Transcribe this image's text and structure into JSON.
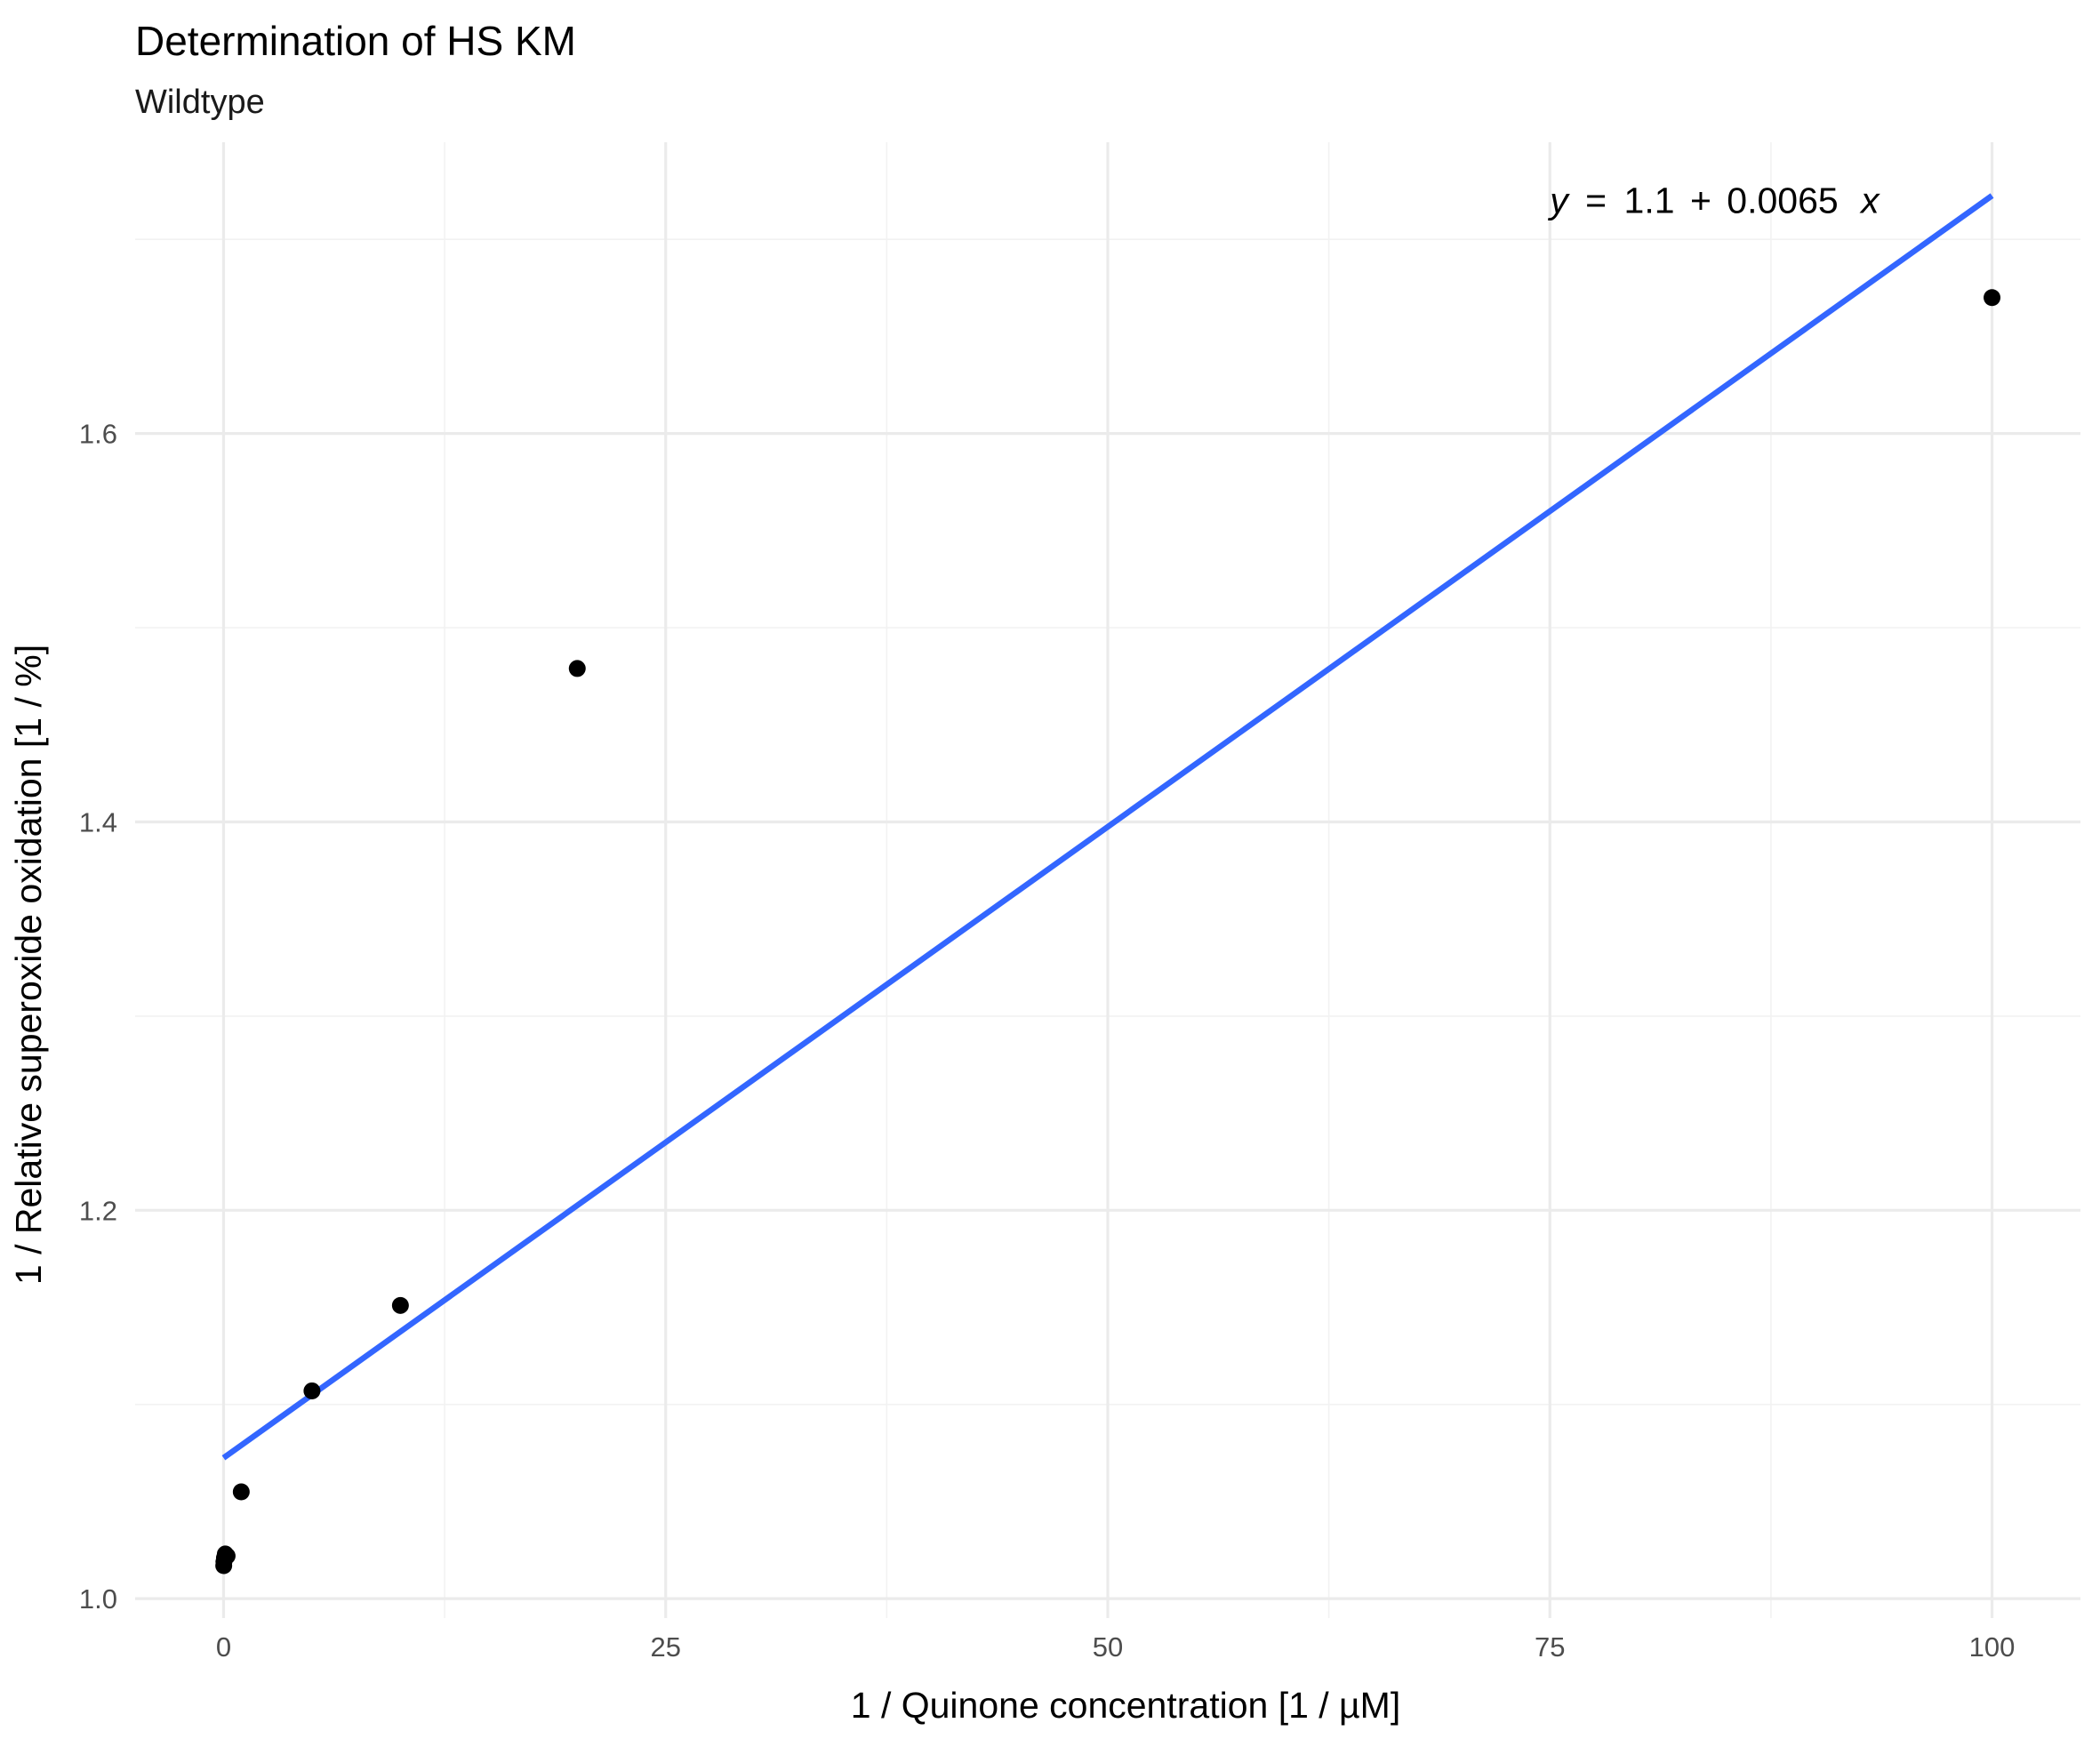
{
  "chart_data": {
    "type": "scatter",
    "title": "Determination of HS KM",
    "subtitle": "Wildtype",
    "xlabel": "1 / Quinone concentration [1 / µM]",
    "ylabel": "1 / Relative superoxide oxidation [1 / %]",
    "xlim": [
      -5,
      105
    ],
    "ylim": [
      0.99,
      1.75
    ],
    "x_ticks": [
      0,
      25,
      50,
      75,
      100
    ],
    "x_tick_labels": [
      "0",
      "25",
      "50",
      "75",
      "100"
    ],
    "x_minor_ticks": [
      12.5,
      37.5,
      62.5,
      87.5
    ],
    "y_ticks": [
      1.0,
      1.2,
      1.4,
      1.6
    ],
    "y_tick_labels": [
      "1.0",
      "1.2",
      "1.4",
      "1.6"
    ],
    "y_minor_ticks": [
      1.1,
      1.3,
      1.5,
      1.7
    ],
    "grid": true,
    "legend": "none",
    "points": {
      "color": "#000000",
      "x": [
        0.01,
        0.02,
        0.05,
        0.1,
        0.2,
        1,
        5,
        10,
        20,
        100
      ],
      "y": [
        1.017,
        1.019,
        1.021,
        1.023,
        1.022,
        1.055,
        1.107,
        1.151,
        1.479,
        1.67
      ]
    },
    "fit_line": {
      "color": "#3366ff",
      "intercept": 1.0725,
      "slope": 0.0065,
      "x_range": [
        0,
        100
      ]
    },
    "annotation": {
      "y_symbol": "y",
      "equals": "=",
      "intercept_text": "1.1",
      "plus": "+",
      "slope_text": "0.0065",
      "x_symbol": "x",
      "x": 75,
      "y": 1.72
    }
  }
}
